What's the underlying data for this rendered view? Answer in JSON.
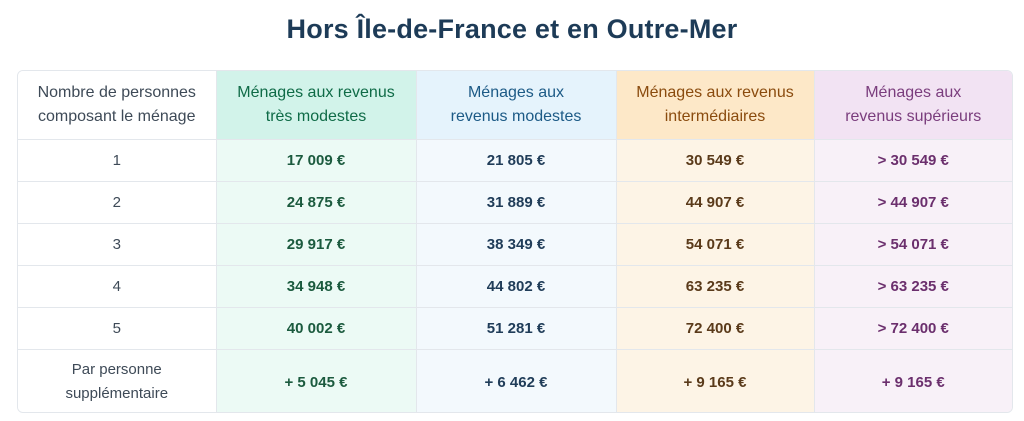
{
  "title": "Hors Île-de-France et en Outre-Mer",
  "headers": {
    "persons_line1": "Nombre de personnes",
    "persons_line2": "composant le ménage",
    "tres_modestes_line1": "Ménages aux revenus",
    "tres_modestes_line2": "très modestes",
    "modestes_line1": "Ménages aux",
    "modestes_line2": "revenus modestes",
    "intermediaires_line1": "Ménages aux revenus",
    "intermediaires_line2": "intermédiaires",
    "superieurs_line1": "Ménages aux",
    "superieurs_line2": "revenus supérieurs"
  },
  "rows": [
    {
      "persons": "1",
      "tres_modestes": "17 009 €",
      "modestes": "21 805 €",
      "intermediaires": "30 549 €",
      "superieurs": "> 30 549 €"
    },
    {
      "persons": "2",
      "tres_modestes": "24 875 €",
      "modestes": "31 889 €",
      "intermediaires": "44 907 €",
      "superieurs": "> 44 907 €"
    },
    {
      "persons": "3",
      "tres_modestes": "29 917 €",
      "modestes": "38 349 €",
      "intermediaires": "54 071 €",
      "superieurs": "> 54 071 €"
    },
    {
      "persons": "4",
      "tres_modestes": "34 948 €",
      "modestes": "44 802 €",
      "intermediaires": "63 235 €",
      "superieurs": "> 63 235 €"
    },
    {
      "persons": "5",
      "tres_modestes": "40 002 €",
      "modestes": "51 281 €",
      "intermediaires": "72 400 €",
      "superieurs": "> 72 400 €"
    }
  ],
  "extra": {
    "label_line1": "Par personne",
    "label_line2": "supplémentaire",
    "tres_modestes": "+ 5 045 €",
    "modestes": "+ 6 462 €",
    "intermediaires": "+ 9 165 €",
    "superieurs": "+ 9 165 €"
  },
  "colors": {
    "tres_modestes": "#0f6b47",
    "modestes": "#1c5a86",
    "intermediaires": "#8a4b0e",
    "superieurs": "#7a3d7d",
    "title": "#1d3b57"
  }
}
